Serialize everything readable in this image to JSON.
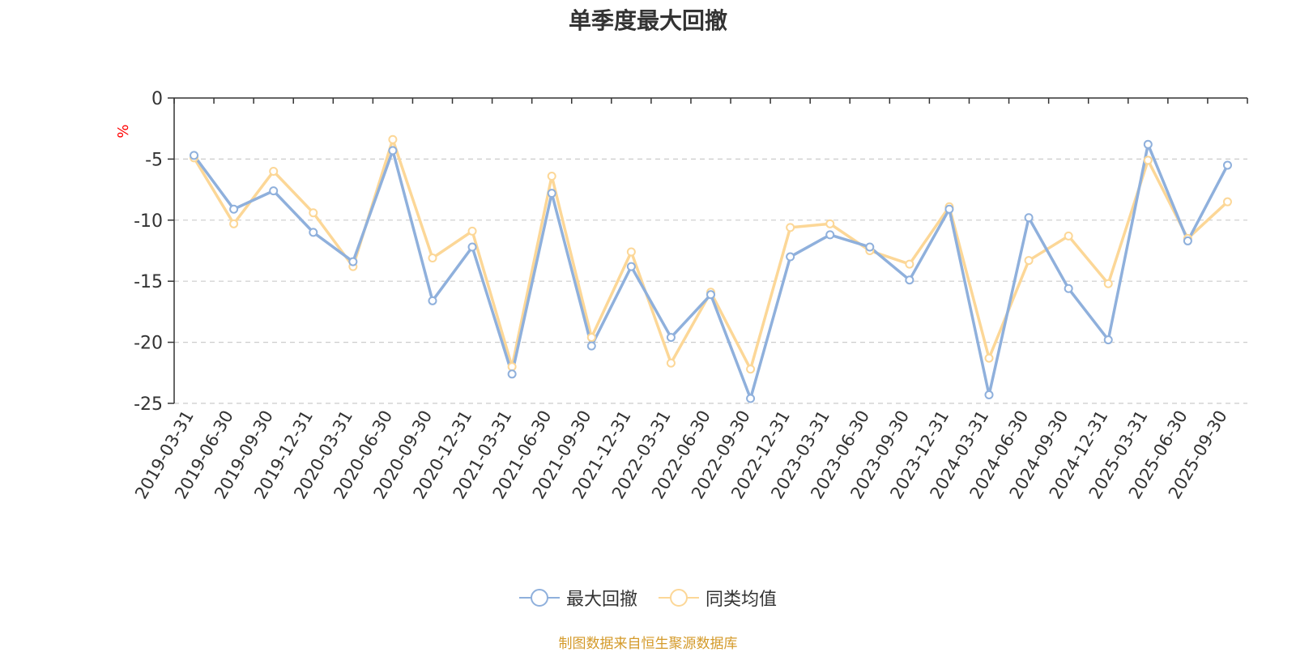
{
  "chart_data": {
    "type": "line",
    "title": "单季度最大回撤",
    "ylabel": "%",
    "ylim": [
      -25,
      0
    ],
    "yticks": [
      0,
      -5,
      -10,
      -15,
      -20,
      -25
    ],
    "grid": true,
    "legend_position": "bottom",
    "categories": [
      "2019-03-31",
      "2019-06-30",
      "2019-09-30",
      "2019-12-31",
      "2020-03-31",
      "2020-06-30",
      "2020-09-30",
      "2020-12-31",
      "2021-03-31",
      "2021-06-30",
      "2021-09-30",
      "2021-12-31",
      "2022-03-31",
      "2022-06-30",
      "2022-09-30",
      "2022-12-31",
      "2023-03-31",
      "2023-06-30",
      "2023-09-30",
      "2023-12-31",
      "2024-03-31",
      "2024-06-30",
      "2024-09-30",
      "2024-12-31",
      "2025-03-31",
      "2025-06-30",
      "2025-09-30"
    ],
    "series": [
      {
        "name": "最大回撤",
        "color": "#8fb0dc",
        "values": [
          -4.7,
          -9.1,
          -7.6,
          -11.0,
          -13.4,
          -4.3,
          -16.6,
          -12.2,
          -22.6,
          -7.8,
          -20.3,
          -13.8,
          -19.6,
          -16.1,
          -24.6,
          -13.0,
          -11.2,
          -12.2,
          -14.9,
          -9.1,
          -24.3,
          -9.8,
          -15.6,
          -19.8,
          -3.8,
          -11.7,
          -5.5
        ]
      },
      {
        "name": "同类均值",
        "color": "#fcd797",
        "values": [
          -4.9,
          -10.3,
          -6.0,
          -9.4,
          -13.8,
          -3.4,
          -13.1,
          -10.9,
          -22.0,
          -6.4,
          -19.6,
          -12.6,
          -21.7,
          -15.9,
          -22.2,
          -10.6,
          -10.3,
          -12.5,
          -13.6,
          -8.9,
          -21.3,
          -13.3,
          -11.3,
          -15.2,
          -5.1,
          -11.5,
          -8.5
        ]
      }
    ]
  },
  "source_text": "制图数据来自恒生聚源数据库"
}
